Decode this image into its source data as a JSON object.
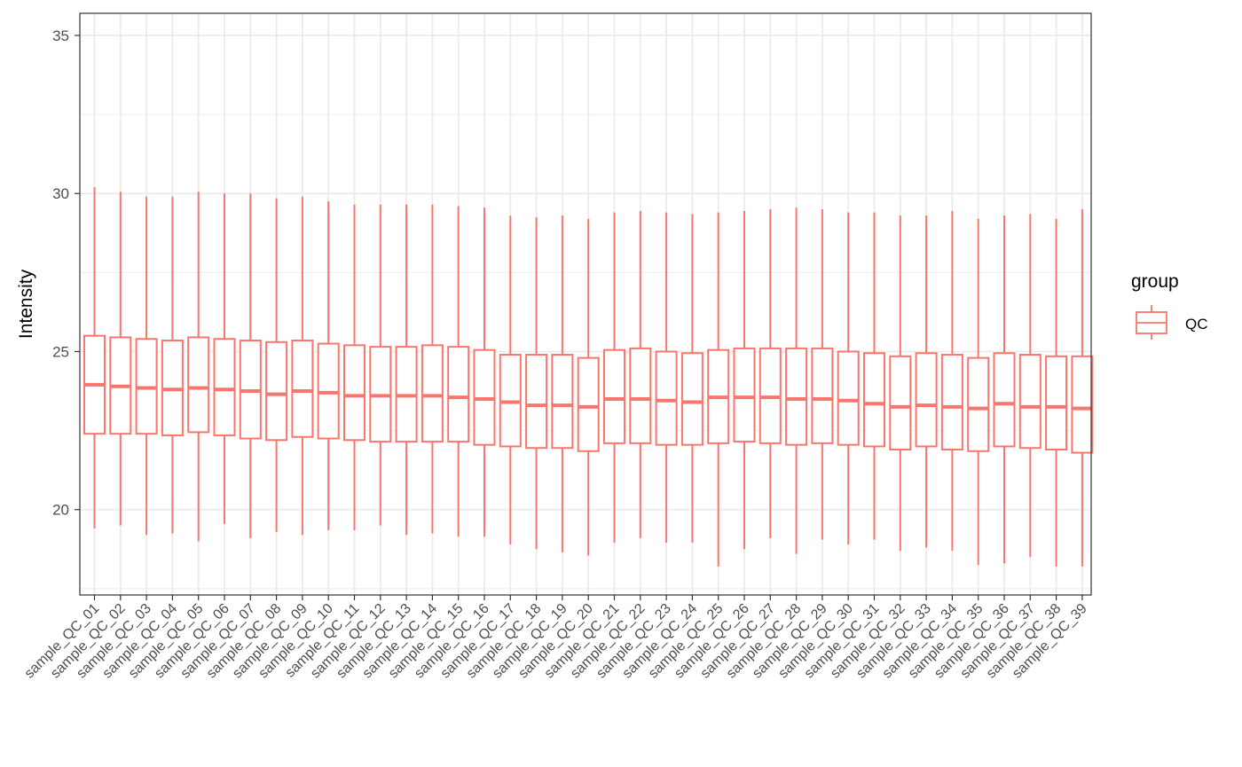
{
  "chart_data": {
    "type": "boxplot",
    "title": "",
    "xlabel": "",
    "ylabel": "Intensity",
    "ylim": [
      17.3,
      35.7
    ],
    "yticks": [
      20,
      25,
      30,
      35
    ],
    "grid": true,
    "legend_position": "right",
    "legend": {
      "title": "group",
      "items": [
        "QC"
      ]
    },
    "colors": {
      "box": "#F8766D",
      "grid": "#ebebeb",
      "panel_border": "#333333"
    },
    "categories": [
      "sample_QC_01",
      "sample_QC_02",
      "sample_QC_03",
      "sample_QC_04",
      "sample_QC_05",
      "sample_QC_06",
      "sample_QC_07",
      "sample_QC_08",
      "sample_QC_09",
      "sample_QC_10",
      "sample_QC_11",
      "sample_QC_12",
      "sample_QC_13",
      "sample_QC_14",
      "sample_QC_15",
      "sample_QC_16",
      "sample_QC_17",
      "sample_QC_18",
      "sample_QC_19",
      "sample_QC_20",
      "sample_QC_21",
      "sample_QC_22",
      "sample_QC_23",
      "sample_QC_24",
      "sample_QC_25",
      "sample_QC_26",
      "sample_QC_27",
      "sample_QC_28",
      "sample_QC_29",
      "sample_QC_30",
      "sample_QC_31",
      "sample_QC_32",
      "sample_QC_33",
      "sample_QC_34",
      "sample_QC_35",
      "sample_QC_36",
      "sample_QC_37",
      "sample_QC_38",
      "sample_QC_39"
    ],
    "series": [
      {
        "name": "QC",
        "boxes": [
          {
            "min": 19.4,
            "q1": 22.4,
            "median": 23.95,
            "q3": 25.5,
            "max": 30.2
          },
          {
            "min": 19.5,
            "q1": 22.4,
            "median": 23.9,
            "q3": 25.45,
            "max": 30.05
          },
          {
            "min": 19.2,
            "q1": 22.4,
            "median": 23.85,
            "q3": 25.4,
            "max": 29.9
          },
          {
            "min": 19.25,
            "q1": 22.35,
            "median": 23.8,
            "q3": 25.35,
            "max": 29.9
          },
          {
            "min": 19.0,
            "q1": 22.45,
            "median": 23.85,
            "q3": 25.45,
            "max": 30.05
          },
          {
            "min": 19.55,
            "q1": 22.35,
            "median": 23.8,
            "q3": 25.4,
            "max": 30.0
          },
          {
            "min": 19.1,
            "q1": 22.25,
            "median": 23.75,
            "q3": 25.35,
            "max": 30.0
          },
          {
            "min": 19.3,
            "q1": 22.2,
            "median": 23.65,
            "q3": 25.3,
            "max": 29.85
          },
          {
            "min": 19.2,
            "q1": 22.3,
            "median": 23.75,
            "q3": 25.35,
            "max": 29.9
          },
          {
            "min": 19.35,
            "q1": 22.25,
            "median": 23.7,
            "q3": 25.25,
            "max": 29.75
          },
          {
            "min": 19.35,
            "q1": 22.2,
            "median": 23.6,
            "q3": 25.2,
            "max": 29.65
          },
          {
            "min": 19.5,
            "q1": 22.15,
            "median": 23.6,
            "q3": 25.15,
            "max": 29.65
          },
          {
            "min": 19.2,
            "q1": 22.15,
            "median": 23.6,
            "q3": 25.15,
            "max": 29.65
          },
          {
            "min": 19.25,
            "q1": 22.15,
            "median": 23.6,
            "q3": 25.2,
            "max": 29.65
          },
          {
            "min": 19.15,
            "q1": 22.15,
            "median": 23.55,
            "q3": 25.15,
            "max": 29.6
          },
          {
            "min": 19.15,
            "q1": 22.05,
            "median": 23.5,
            "q3": 25.05,
            "max": 29.55
          },
          {
            "min": 18.9,
            "q1": 22.0,
            "median": 23.4,
            "q3": 24.9,
            "max": 29.3
          },
          {
            "min": 18.75,
            "q1": 21.95,
            "median": 23.3,
            "q3": 24.9,
            "max": 29.25
          },
          {
            "min": 18.65,
            "q1": 21.95,
            "median": 23.3,
            "q3": 24.9,
            "max": 29.3
          },
          {
            "min": 18.55,
            "q1": 21.85,
            "median": 23.25,
            "q3": 24.8,
            "max": 29.2
          },
          {
            "min": 18.95,
            "q1": 22.1,
            "median": 23.5,
            "q3": 25.05,
            "max": 29.4
          },
          {
            "min": 19.1,
            "q1": 22.1,
            "median": 23.5,
            "q3": 25.1,
            "max": 29.45
          },
          {
            "min": 18.95,
            "q1": 22.05,
            "median": 23.45,
            "q3": 25.0,
            "max": 29.4
          },
          {
            "min": 18.95,
            "q1": 22.05,
            "median": 23.4,
            "q3": 24.95,
            "max": 29.35
          },
          {
            "min": 18.2,
            "q1": 22.1,
            "median": 23.55,
            "q3": 25.05,
            "max": 29.4
          },
          {
            "min": 18.75,
            "q1": 22.15,
            "median": 23.55,
            "q3": 25.1,
            "max": 29.45
          },
          {
            "min": 19.1,
            "q1": 22.1,
            "median": 23.55,
            "q3": 25.1,
            "max": 29.5
          },
          {
            "min": 18.6,
            "q1": 22.05,
            "median": 23.5,
            "q3": 25.1,
            "max": 29.55
          },
          {
            "min": 19.05,
            "q1": 22.1,
            "median": 23.5,
            "q3": 25.1,
            "max": 29.5
          },
          {
            "min": 18.9,
            "q1": 22.05,
            "median": 23.45,
            "q3": 25.0,
            "max": 29.4
          },
          {
            "min": 19.05,
            "q1": 22.0,
            "median": 23.35,
            "q3": 24.95,
            "max": 29.4
          },
          {
            "min": 18.7,
            "q1": 21.9,
            "median": 23.25,
            "q3": 24.85,
            "max": 29.3
          },
          {
            "min": 18.8,
            "q1": 22.0,
            "median": 23.3,
            "q3": 24.95,
            "max": 29.3
          },
          {
            "min": 18.7,
            "q1": 21.9,
            "median": 23.25,
            "q3": 24.9,
            "max": 29.45
          },
          {
            "min": 18.25,
            "q1": 21.85,
            "median": 23.2,
            "q3": 24.8,
            "max": 29.2
          },
          {
            "min": 18.3,
            "q1": 22.0,
            "median": 23.35,
            "q3": 24.95,
            "max": 29.3
          },
          {
            "min": 18.5,
            "q1": 21.95,
            "median": 23.25,
            "q3": 24.9,
            "max": 29.35
          },
          {
            "min": 18.2,
            "q1": 21.9,
            "median": 23.25,
            "q3": 24.85,
            "max": 29.2
          },
          {
            "min": 18.2,
            "q1": 21.8,
            "median": 23.2,
            "q3": 24.85,
            "max": 29.5
          }
        ]
      }
    ]
  }
}
